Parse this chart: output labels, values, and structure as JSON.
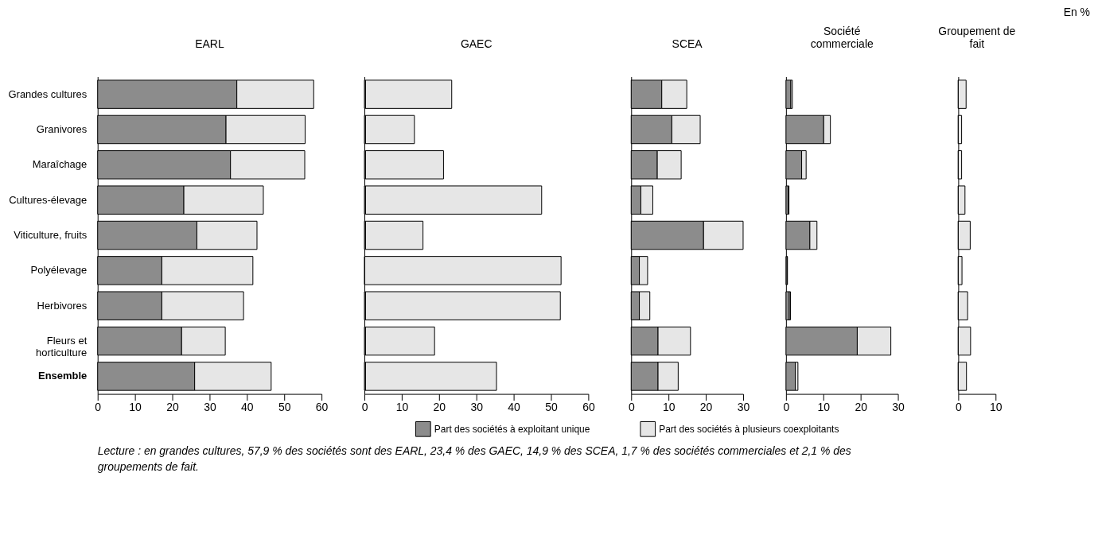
{
  "chart_data": [
    {
      "type": "bar",
      "orientation": "horizontal",
      "stacked": true,
      "title": "EARL",
      "legend": "bottom",
      "categories": [
        "Grandes cultures",
        "Granivores",
        "Maraîchage",
        "Cultures-élevage",
        "Viticulture, fruits",
        "Polyélevage",
        "Herbivores",
        "Fleurs et horticulture",
        "Ensemble"
      ],
      "series": [
        {
          "name": "Part des sociétés à exploitant unique",
          "color": "#8c8c8c",
          "values": [
            37.3,
            34.4,
            35.6,
            23.1,
            26.6,
            17.2,
            17.2,
            22.5,
            26.0
          ]
        },
        {
          "name": "Part des sociétés à plusieurs coexploitants",
          "color": "#e6e6e6",
          "values": [
            20.6,
            21.2,
            19.9,
            21.3,
            16.1,
            24.4,
            21.9,
            11.7,
            20.5
          ]
        }
      ],
      "xlim": [
        0,
        60
      ],
      "xticks": [
        0,
        10,
        20,
        30,
        40,
        50,
        60
      ],
      "grid": false,
      "annotations": [
        "En %",
        "Lecture : en grandes cultures, 57,9 % des sociétés sont des EARL, 23,4 % des GAEC, 14,9 % des SCEA, 1,7 % des sociétés commerciales et 2,1 % des groupements de fait."
      ]
    },
    {
      "type": "bar",
      "orientation": "horizontal",
      "stacked": true,
      "title": "GAEC",
      "tick_labels": "x",
      "categories": [
        "Grandes cultures",
        "Granivores",
        "Maraîchage",
        "Cultures-élevage",
        "Viticulture, fruits",
        "Polyélevage",
        "Herbivores",
        "Fleurs et horticulture",
        "Ensemble"
      ],
      "series": [
        {
          "color": "#8c8c8c",
          "values": [
            0.3,
            0.3,
            0.3,
            0.3,
            0.3,
            0.1,
            0.3,
            0.3,
            0.3
          ]
        },
        {
          "color": "#e6e6e6",
          "values": [
            23.1,
            13.1,
            20.9,
            47.2,
            15.4,
            52.6,
            52.2,
            18.5,
            35.1
          ]
        }
      ],
      "xlim": [
        0,
        60
      ],
      "xticks": [
        0,
        10,
        20,
        30,
        40,
        50,
        60
      ],
      "grid": false
    },
    {
      "type": "bar",
      "orientation": "horizontal",
      "stacked": true,
      "title": "SCEA",
      "tick_labels": "x",
      "categories": [
        "Grandes cultures",
        "Granivores",
        "Maraîchage",
        "Cultures-élevage",
        "Viticulture, fruits",
        "Polyélevage",
        "Herbivores",
        "Fleurs et horticulture",
        "Ensemble"
      ],
      "series": [
        {
          "color": "#8c8c8c",
          "values": [
            8.2,
            10.9,
            7.0,
            2.6,
            19.4,
            2.2,
            2.2,
            7.2,
            7.2
          ]
        },
        {
          "color": "#e6e6e6",
          "values": [
            6.7,
            7.6,
            6.4,
            3.2,
            10.6,
            2.2,
            2.8,
            8.7,
            5.4
          ]
        }
      ],
      "xlim": [
        0,
        30
      ],
      "xticks": [
        0,
        10,
        20,
        30
      ],
      "grid": false
    },
    {
      "type": "bar",
      "orientation": "horizontal",
      "stacked": true,
      "title": "Société commerciale",
      "tick_labels": "x",
      "categories": [
        "Grandes cultures",
        "Granivores",
        "Maraîchage",
        "Cultures-élevage",
        "Viticulture, fruits",
        "Polyélevage",
        "Herbivores",
        "Fleurs et horticulture",
        "Ensemble"
      ],
      "series": [
        {
          "color": "#8c8c8c",
          "values": [
            1.3,
            10.1,
            4.2,
            0.6,
            6.4,
            0.3,
            0.9,
            19.1,
            2.5
          ]
        },
        {
          "color": "#e6e6e6",
          "values": [
            0.4,
            1.8,
            1.2,
            0.2,
            1.9,
            0.1,
            0.3,
            9.0,
            0.7
          ]
        }
      ],
      "xlim": [
        0,
        30
      ],
      "xticks": [
        0,
        10,
        20,
        30
      ],
      "grid": false
    },
    {
      "type": "bar",
      "orientation": "horizontal",
      "stacked": true,
      "title": "Groupement de fait",
      "tick_labels": "x",
      "categories": [
        "Grandes cultures",
        "Granivores",
        "Maraîchage",
        "Cultures-élevage",
        "Viticulture, fruits",
        "Polyélevage",
        "Herbivores",
        "Fleurs et horticulture",
        "Ensemble"
      ],
      "series": [
        {
          "color": "#8c8c8c",
          "values": [
            0,
            0,
            0,
            0,
            0,
            0,
            0,
            0,
            0
          ]
        },
        {
          "color": "#e6e6e6",
          "values": [
            2.1,
            0.9,
            0.9,
            1.8,
            3.2,
            1.0,
            2.5,
            3.3,
            2.2
          ]
        }
      ],
      "xlim": [
        0,
        10
      ],
      "xticks": [
        0,
        10
      ],
      "grid": false
    }
  ]
}
